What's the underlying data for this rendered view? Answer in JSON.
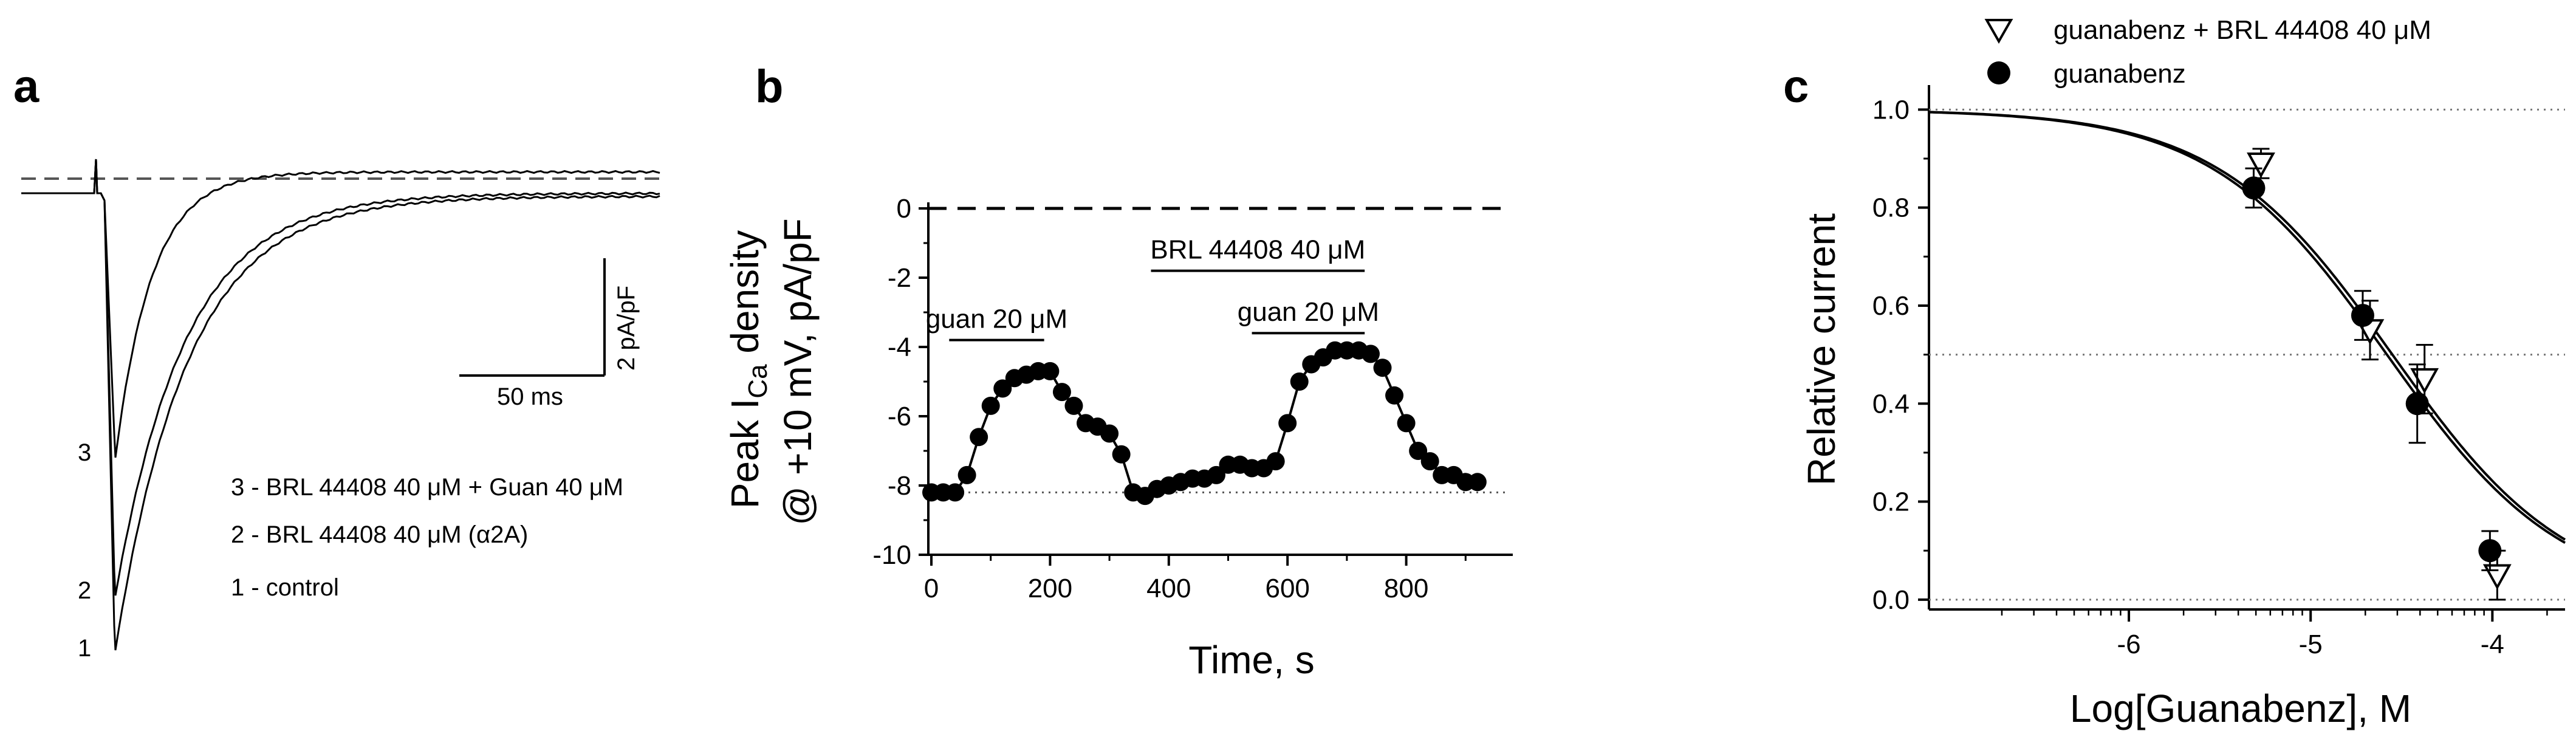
{
  "panels": {
    "a": {
      "label": "a",
      "scalebar": {
        "y_text": "2 pA/pF",
        "x_text": "50 ms"
      },
      "trace_numbers": [
        "3",
        "2",
        "1"
      ],
      "legend": [
        "3 - BRL 44408 40 μM + Guan 40 μM",
        "2 - BRL 44408 40 μM (α2A)",
        "1 - control"
      ]
    },
    "b": {
      "label": "b"
    },
    "c": {
      "label": "c"
    }
  },
  "chart_data": [
    {
      "panel": "b",
      "type": "line",
      "xlabel": "Time, s",
      "ylabel_main": "Peak I",
      "ylabel_sub": "Ca",
      "ylabel_rest": " density",
      "ylabel_line2": "@ +10 mV, pA/pF",
      "xlim": [
        -10,
        950
      ],
      "ylim": [
        -10,
        0
      ],
      "xticks": [
        0,
        200,
        400,
        600,
        800
      ],
      "yticks": [
        0,
        -2,
        -4,
        -6,
        -8,
        -10
      ],
      "reference_line_y": -8.2,
      "annotations": [
        {
          "text": "guan 20 μM",
          "x_start": 30,
          "x_end": 190,
          "y": -3.8
        },
        {
          "text": "BRL 44408 40 μM",
          "x_start": 370,
          "x_end": 730,
          "y": -1.8
        },
        {
          "text": "guan 20 μM",
          "x_start": 540,
          "x_end": 730,
          "y": -3.6
        }
      ],
      "series": [
        {
          "x": [
            0,
            20,
            40,
            60,
            80,
            100,
            120,
            140,
            160,
            180,
            200,
            220,
            240,
            260,
            280,
            300,
            320,
            340,
            360,
            380,
            400,
            420,
            440,
            460,
            480,
            500,
            520,
            540,
            560,
            580,
            600,
            620,
            640,
            660,
            680,
            700,
            720,
            740,
            760,
            780,
            800,
            820,
            840,
            860,
            880,
            900,
            920
          ],
          "values": [
            -8.2,
            -8.2,
            -8.2,
            -7.7,
            -6.6,
            -5.7,
            -5.2,
            -4.9,
            -4.8,
            -4.7,
            -4.7,
            -5.3,
            -5.7,
            -6.2,
            -6.3,
            -6.5,
            -7.1,
            -8.2,
            -8.3,
            -8.1,
            -8.0,
            -7.9,
            -7.8,
            -7.8,
            -7.7,
            -7.4,
            -7.4,
            -7.5,
            -7.5,
            -7.3,
            -6.2,
            -5.0,
            -4.5,
            -4.3,
            -4.1,
            -4.1,
            -4.1,
            -4.2,
            -4.6,
            -5.4,
            -6.2,
            -7.0,
            -7.3,
            -7.7,
            -7.7,
            -7.9,
            -7.9
          ]
        }
      ]
    },
    {
      "panel": "c",
      "type": "scatter",
      "xlabel": "Log[Guanabenz], M",
      "ylabel": "Relative current",
      "xlim": [
        -7.1,
        -3.6
      ],
      "ylim": [
        -0.02,
        1.05
      ],
      "xticks": [
        -6,
        -5,
        -4
      ],
      "yticks": [
        0.0,
        0.2,
        0.4,
        0.6,
        0.8,
        1.0
      ],
      "reference_lines_y": [
        1.0,
        0.5,
        0.0
      ],
      "legend_position": "top",
      "series": [
        {
          "name": "guanabenz + BRL 44408 40 μM",
          "marker": "open-triangle-down",
          "x": [
            -5.3,
            -4.7,
            -4.4,
            -4.0
          ],
          "values": [
            0.89,
            0.55,
            0.45,
            0.05
          ],
          "errors": [
            0.03,
            0.06,
            0.07,
            0.05
          ],
          "fit": {
            "top": 1.0,
            "logEC50": -4.58,
            "hill": 0.9
          }
        },
        {
          "name": "guanabenz",
          "marker": "filled-circle",
          "x": [
            -5.3,
            -4.7,
            -4.4,
            -4.0
          ],
          "values": [
            0.84,
            0.58,
            0.4,
            0.1
          ],
          "errors": [
            0.04,
            0.05,
            0.08,
            0.04
          ],
          "fit": {
            "top": 1.0,
            "logEC50": -4.55,
            "hill": 0.9
          }
        }
      ]
    }
  ]
}
